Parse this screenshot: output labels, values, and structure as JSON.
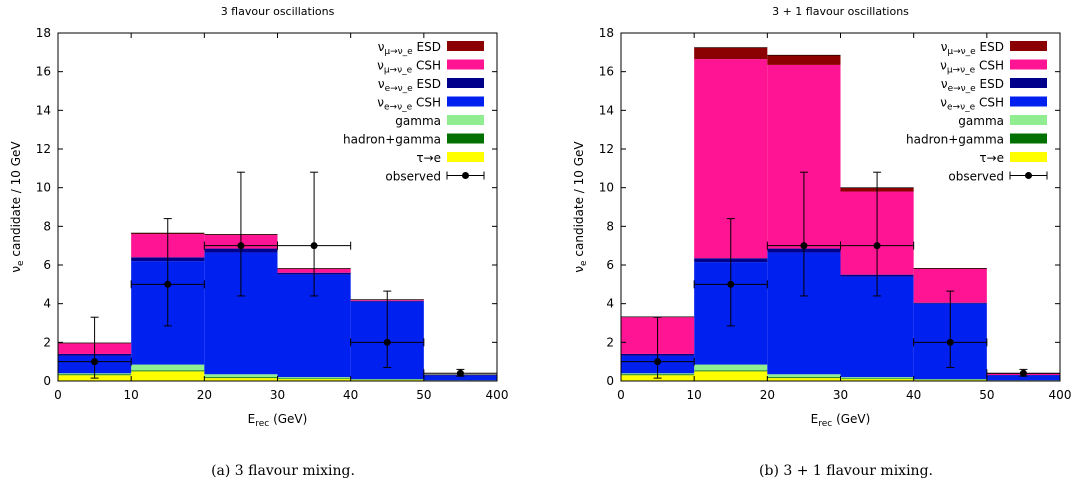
{
  "chart_data": [
    {
      "type": "bar",
      "title": "3 flavour oscillations",
      "caption": "(a) 3 flavour mixing.",
      "xlabel": "E_rec (GeV)",
      "ylabel": "ν_e candidate / 10 GeV",
      "bin_edges": [
        "0",
        "10",
        "20",
        "30",
        "40",
        "50",
        "400"
      ],
      "ylim": [
        0,
        18
      ],
      "yticks": [
        "0",
        "2",
        "4",
        "6",
        "8",
        "10",
        "12",
        "14",
        "16",
        "18"
      ],
      "stacked": true,
      "legend_position": "top-right",
      "series": [
        {
          "name": "τ→e",
          "color": "#ffff00",
          "values": [
            0.3,
            0.5,
            0.15,
            0.1,
            0.05,
            0.02
          ]
        },
        {
          "name": "hadron+gamma",
          "color": "#007000",
          "values": [
            0.05,
            0.05,
            0.05,
            0.03,
            0.02,
            0.01
          ]
        },
        {
          "name": "gamma",
          "color": "#90ee90",
          "values": [
            0.05,
            0.3,
            0.15,
            0.07,
            0.03,
            0.01
          ]
        },
        {
          "name": "ν_e→ν_e CSH",
          "color": "#0020f0",
          "values": [
            0.9,
            5.35,
            6.3,
            5.3,
            4.0,
            0.25
          ]
        },
        {
          "name": "ν_e→ν_e ESD",
          "color": "#00008b",
          "values": [
            0.1,
            0.2,
            0.2,
            0.1,
            0.05,
            0.02
          ]
        },
        {
          "name": "ν_μ→ν_e CSH",
          "color": "#ff1493",
          "values": [
            0.55,
            1.2,
            0.7,
            0.2,
            0.05,
            0.01
          ]
        },
        {
          "name": "ν_μ→ν_e ESD",
          "color": "#8b0000",
          "values": [
            0.02,
            0.05,
            0.03,
            0.02,
            0.01,
            0.0
          ]
        }
      ],
      "observed": {
        "name": "observed",
        "values": [
          1,
          5,
          7,
          7,
          2,
          0.4
        ],
        "err_low": [
          0.85,
          2.15,
          2.6,
          2.6,
          1.3,
          0.15
        ],
        "err_high": [
          2.3,
          3.4,
          3.8,
          3.8,
          2.65,
          0.2
        ]
      }
    },
    {
      "type": "bar",
      "title": "3 + 1 flavour oscillations",
      "caption": "(b) 3 + 1 flavour mixing.",
      "xlabel": "E_rec (GeV)",
      "ylabel": "ν_e candidate / 10 GeV",
      "bin_edges": [
        "0",
        "10",
        "20",
        "30",
        "40",
        "50",
        "400"
      ],
      "ylim": [
        0,
        18
      ],
      "yticks": [
        "0",
        "2",
        "4",
        "6",
        "8",
        "10",
        "12",
        "14",
        "16",
        "18"
      ],
      "stacked": true,
      "legend_position": "top-right",
      "series": [
        {
          "name": "τ→e",
          "color": "#ffff00",
          "values": [
            0.3,
            0.5,
            0.15,
            0.1,
            0.05,
            0.02
          ]
        },
        {
          "name": "hadron+gamma",
          "color": "#007000",
          "values": [
            0.05,
            0.05,
            0.05,
            0.03,
            0.02,
            0.01
          ]
        },
        {
          "name": "gamma",
          "color": "#90ee90",
          "values": [
            0.05,
            0.3,
            0.15,
            0.07,
            0.03,
            0.01
          ]
        },
        {
          "name": "ν_e→ν_e CSH",
          "color": "#0020f0",
          "values": [
            0.9,
            5.3,
            6.3,
            5.2,
            3.9,
            0.25
          ]
        },
        {
          "name": "ν_e→ν_e ESD",
          "color": "#00008b",
          "values": [
            0.1,
            0.2,
            0.2,
            0.1,
            0.05,
            0.02
          ]
        },
        {
          "name": "ν_μ→ν_e CSH",
          "color": "#ff1493",
          "values": [
            1.9,
            10.3,
            9.5,
            4.3,
            1.75,
            0.08
          ]
        },
        {
          "name": "ν_μ→ν_e ESD",
          "color": "#8b0000",
          "values": [
            0.02,
            0.6,
            0.5,
            0.2,
            0.03,
            0.01
          ]
        }
      ],
      "observed": {
        "name": "observed",
        "values": [
          1,
          5,
          7,
          7,
          2,
          0.4
        ],
        "err_low": [
          0.85,
          2.15,
          2.6,
          2.6,
          1.3,
          0.15
        ],
        "err_high": [
          2.3,
          3.4,
          3.8,
          3.8,
          2.65,
          0.2
        ]
      }
    }
  ]
}
